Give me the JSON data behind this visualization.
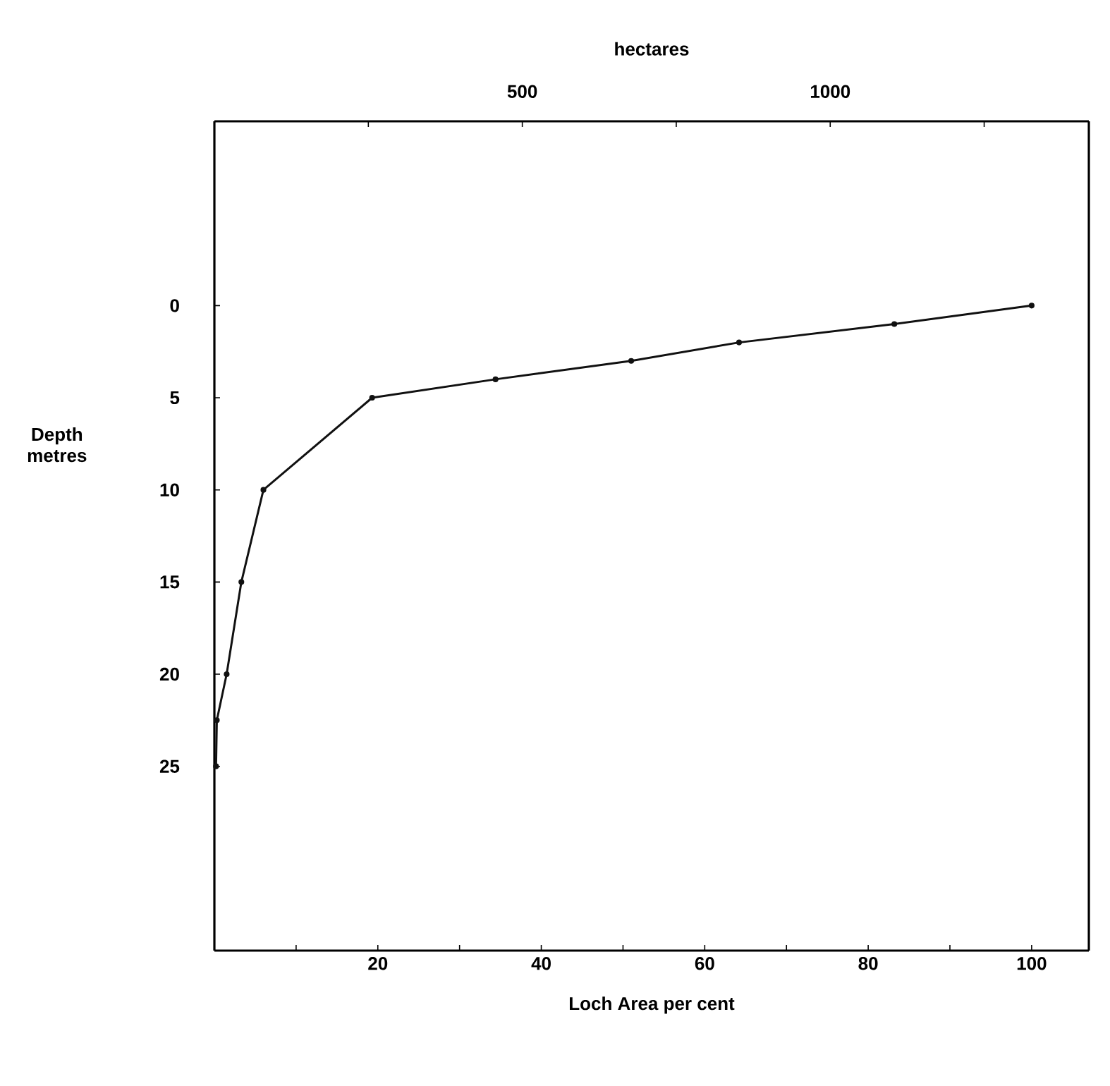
{
  "chart_data": {
    "type": "line",
    "xlabel": "Loch Area per cent",
    "x2label": "hectares",
    "ylabel": "Depth metres",
    "x": [
      100,
      83.2,
      64.2,
      51.0,
      34.4,
      19.3,
      6.0,
      3.3,
      1.5,
      0.3,
      0.2
    ],
    "series": [
      {
        "color": "#111111",
        "values": [
          0,
          1,
          2,
          3,
          4,
          5,
          10,
          15,
          20,
          22.5,
          25
        ]
      }
    ],
    "xlim": [
      0,
      107
    ],
    "x2lim": [
      0,
      1420
    ],
    "ylim": [
      35,
      -10
    ],
    "xticks": [
      {
        "value": 10,
        "label": null
      },
      20,
      {
        "value": 30,
        "label": null
      },
      40,
      {
        "value": 50,
        "label": null
      },
      60,
      {
        "value": 70,
        "label": null
      },
      80,
      {
        "value": 90,
        "label": null
      },
      100
    ],
    "x2ticks": [
      {
        "value": 250,
        "label": null
      },
      500,
      {
        "value": 750,
        "label": null
      },
      1000,
      {
        "value": 1250,
        "label": null
      }
    ],
    "yticks": [
      0,
      5,
      10,
      15,
      20,
      25
    ],
    "marker": "circle",
    "line_style": "solid",
    "grid": false
  }
}
